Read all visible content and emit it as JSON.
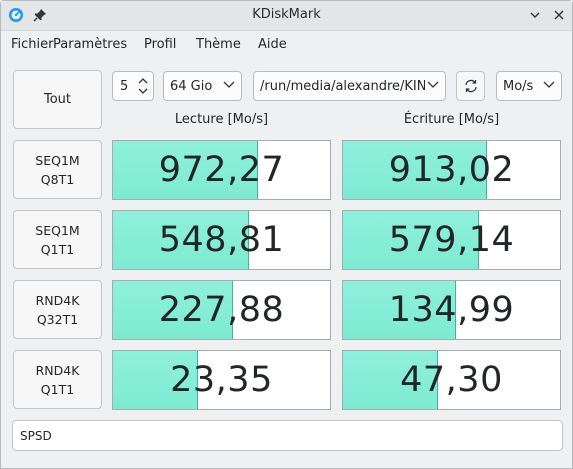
{
  "window": {
    "title": "KDiskMark"
  },
  "menu": [
    "Fichier",
    "Paramètres",
    "Profil",
    "Thème",
    "Aide"
  ],
  "controls": {
    "all_button": "Tout",
    "runs_value": "5",
    "size_value": "64 Gio",
    "path_value": "/run/media/alexandre/KINGSTON",
    "unit_value": "Mo/s"
  },
  "headers": {
    "read": "Lecture [Mo/s]",
    "write": "Écriture [Mo/s]"
  },
  "tests": [
    {
      "line1": "SEQ1M",
      "line2": "Q8T1",
      "read": "972,27",
      "read_fill": 0.665,
      "write": "913,02",
      "write_fill": 0.66
    },
    {
      "line1": "SEQ1M",
      "line2": "Q1T1",
      "read": "548,81",
      "read_fill": 0.62,
      "write": "579,14",
      "write_fill": 0.62
    },
    {
      "line1": "RND4K",
      "line2": "Q32T1",
      "read": "227,88",
      "read_fill": 0.55,
      "write": "134,99",
      "write_fill": 0.515
    },
    {
      "line1": "RND4K",
      "line2": "Q1T1",
      "read": "23,35",
      "read_fill": 0.385,
      "write": "47,30",
      "write_fill": 0.435
    }
  ],
  "status": "SPSD",
  "colors": {
    "bar_fill": "#7eead2",
    "bar_edge": "#3fb59b"
  }
}
